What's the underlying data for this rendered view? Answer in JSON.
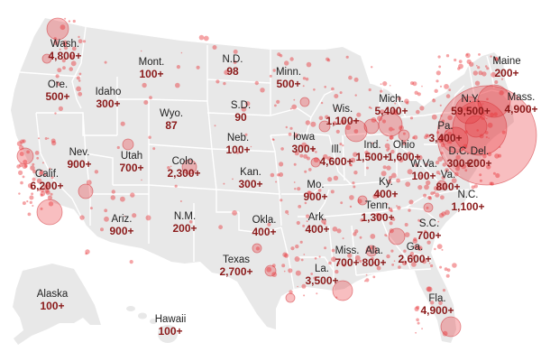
{
  "colors": {
    "land": "#e8e8e8",
    "border": "#ffffff",
    "bubble_fill": "#e8353a",
    "bubble_stroke": "#d02a30",
    "name_text": "#222222",
    "count_text": "#8b1a1a"
  },
  "states": [
    {
      "id": "wa",
      "name": "Wash.",
      "count": "4,800+"
    },
    {
      "id": "mt",
      "name": "Mont.",
      "count": "100+"
    },
    {
      "id": "nd",
      "name": "N.D.",
      "count": "98"
    },
    {
      "id": "mn",
      "name": "Minn.",
      "count": "500+"
    },
    {
      "id": "me",
      "name": "Maine",
      "count": "200+"
    },
    {
      "id": "or",
      "name": "Ore.",
      "count": "500+"
    },
    {
      "id": "id",
      "name": "Idaho",
      "count": "300+"
    },
    {
      "id": "wy",
      "name": "Wyo.",
      "count": "87"
    },
    {
      "id": "sd",
      "name": "S.D.",
      "count": "90"
    },
    {
      "id": "wi",
      "name": "Wis.",
      "count": "1,100+"
    },
    {
      "id": "mi",
      "name": "Mich.",
      "count": "5,400+"
    },
    {
      "id": "ny",
      "name": "N.Y.",
      "count": "59,500+"
    },
    {
      "id": "ma",
      "name": "Mass.",
      "count": "4,900+"
    },
    {
      "id": "ne",
      "name": "Neb.",
      "count": "100+"
    },
    {
      "id": "ia",
      "name": "Iowa",
      "count": "300+"
    },
    {
      "id": "pa",
      "name": "Pa.",
      "count": "3,400+"
    },
    {
      "id": "nv",
      "name": "Nev.",
      "count": "900+"
    },
    {
      "id": "ut",
      "name": "Utah",
      "count": "700+"
    },
    {
      "id": "co",
      "name": "Colo.",
      "count": "2,300+"
    },
    {
      "id": "il",
      "name": "Ill.",
      "count": "4,600+"
    },
    {
      "id": "in",
      "name": "Ind.",
      "count": "1,500+"
    },
    {
      "id": "oh",
      "name": "Ohio",
      "count": "1,600+"
    },
    {
      "id": "dc",
      "name": "D.C.",
      "count": "300+"
    },
    {
      "id": "de",
      "name": "Del.",
      "count": "200+"
    },
    {
      "id": "ca",
      "name": "Calif.",
      "count": "6,200+"
    },
    {
      "id": "ks",
      "name": "Kan.",
      "count": "300+"
    },
    {
      "id": "mo",
      "name": "Mo.",
      "count": "900+"
    },
    {
      "id": "ky",
      "name": "Ky.",
      "count": "400+"
    },
    {
      "id": "wv",
      "name": "W.Va.",
      "count": "100+"
    },
    {
      "id": "va",
      "name": "Va.",
      "count": "800+"
    },
    {
      "id": "nc",
      "name": "N.C.",
      "count": "1,100+"
    },
    {
      "id": "az",
      "name": "Ariz.",
      "count": "900+"
    },
    {
      "id": "nm",
      "name": "N.M.",
      "count": "200+"
    },
    {
      "id": "ok",
      "name": "Okla.",
      "count": "400+"
    },
    {
      "id": "ar",
      "name": "Ark.",
      "count": "400+"
    },
    {
      "id": "tn",
      "name": "Tenn.",
      "count": "1,300+"
    },
    {
      "id": "sc",
      "name": "S.C.",
      "count": "700+"
    },
    {
      "id": "tx",
      "name": "Texas",
      "count": "2,700+"
    },
    {
      "id": "ms",
      "name": "Miss.",
      "count": "700+"
    },
    {
      "id": "al",
      "name": "Ala.",
      "count": "800+"
    },
    {
      "id": "ga",
      "name": "Ga.",
      "count": "2,600+"
    },
    {
      "id": "la",
      "name": "La.",
      "count": "3,500+"
    },
    {
      "id": "fl",
      "name": "Fla.",
      "count": "4,900+"
    },
    {
      "id": "ak",
      "name": "Alaska",
      "count": "100+"
    },
    {
      "id": "hi",
      "name": "Hawaii",
      "count": "100+"
    }
  ]
}
